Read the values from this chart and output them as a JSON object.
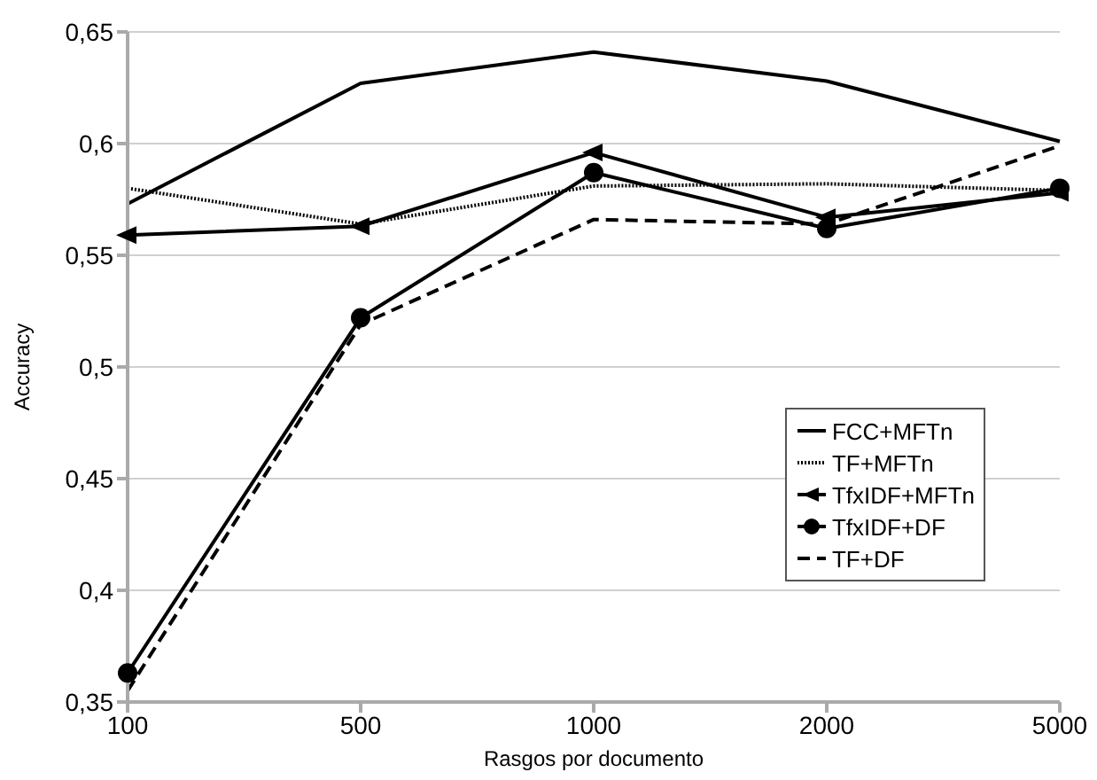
{
  "chart_data": {
    "type": "line",
    "xlabel": "Rasgos por documento",
    "ylabel": "Accuracy",
    "categories": [
      "100",
      "500",
      "1000",
      "2000",
      "5000"
    ],
    "series": [
      {
        "name": "FCC+MFTn",
        "color": "#000000",
        "line_style": "solid",
        "marker": "none",
        "values": [
          0.573,
          0.627,
          0.641,
          0.628,
          0.601
        ]
      },
      {
        "name": "TF+MFTn",
        "color": "#000000",
        "line_style": "dotted",
        "marker": "none",
        "values": [
          0.58,
          0.564,
          0.581,
          0.582,
          0.579
        ]
      },
      {
        "name": "TfxIDF+MFTn",
        "color": "#000000",
        "line_style": "solid",
        "marker": "triangle",
        "values": [
          0.559,
          0.563,
          0.596,
          0.567,
          0.578
        ]
      },
      {
        "name": "TfxIDF+DF",
        "color": "#000000",
        "line_style": "solid",
        "marker": "circle",
        "values": [
          0.363,
          0.522,
          0.587,
          0.562,
          0.58
        ]
      },
      {
        "name": "TF+DF",
        "color": "#000000",
        "line_style": "dashed",
        "marker": "none",
        "values": [
          0.355,
          0.519,
          0.566,
          0.564,
          0.599
        ]
      }
    ],
    "ylim": [
      0.35,
      0.65
    ],
    "yticks": [
      {
        "value": 0.35,
        "label": "0,35"
      },
      {
        "value": 0.4,
        "label": "0,4"
      },
      {
        "value": 0.45,
        "label": "0,45"
      },
      {
        "value": 0.5,
        "label": "0,5"
      },
      {
        "value": 0.55,
        "label": "0,55"
      },
      {
        "value": 0.6,
        "label": "0,6"
      },
      {
        "value": 0.65,
        "label": "0,65"
      }
    ],
    "grid": "y",
    "legend": "right"
  }
}
